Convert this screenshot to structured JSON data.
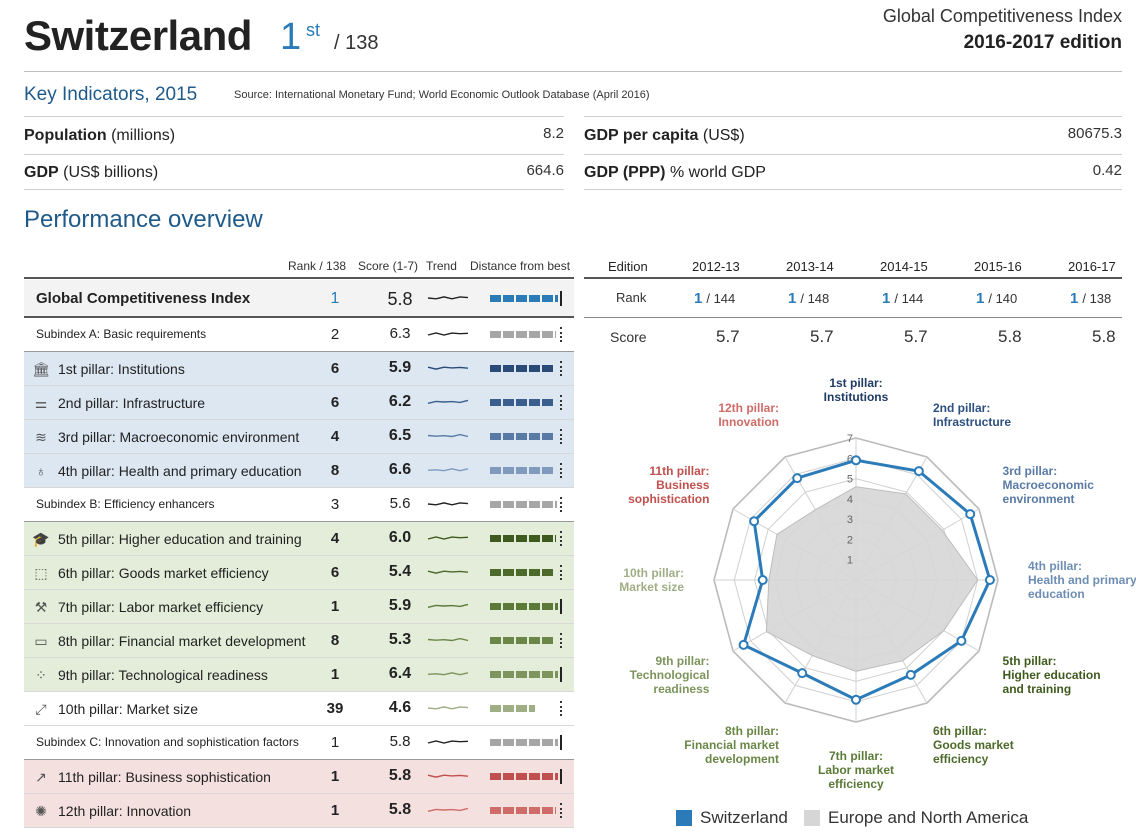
{
  "header": {
    "country": "Switzerland",
    "rank": "1",
    "rank_suffix": "st",
    "rank_of": "/ 138",
    "report_title": "Global Competitiveness Index",
    "edition": "2016-2017 edition"
  },
  "key_indicators": {
    "title": "Key Indicators, 2015",
    "source": "Source: International Monetary Fund; World Economic Outlook Database (April 2016)",
    "items": [
      {
        "bold": "Population",
        "rest": " (millions)",
        "value": "8.2"
      },
      {
        "bold": "GDP",
        "rest": " (US$ billions)",
        "value": "664.6"
      },
      {
        "bold": "GDP per capita",
        "rest": " (US$)",
        "value": "80675.3"
      },
      {
        "bold": "GDP (PPP)",
        "rest": " % world GDP",
        "value": "0.42"
      }
    ]
  },
  "performance": {
    "title": "Performance overview",
    "col_rank": "Rank / 138",
    "col_score": "Score (1-7)",
    "col_trend": "Trend",
    "col_distance": "Distance from best"
  },
  "table_rows": [
    {
      "label": "Global Competitiveness Index",
      "rank": "1",
      "score": "5.8",
      "kind": "main",
      "icon": "",
      "icon_name": "",
      "color": "#2b7bb9",
      "dist": 1.0
    },
    {
      "label": "Subindex A: Basic requirements",
      "rank": "2",
      "score": "6.3",
      "kind": "sub",
      "icon": "",
      "icon_name": "",
      "color": "#a6a6a6",
      "dist": 0.97
    },
    {
      "label": "1st pillar: Institutions",
      "rank": "6",
      "score": "5.9",
      "kind": "blue",
      "icon": "🏛",
      "icon_name": "institutions-icon",
      "color": "#2a4a78",
      "dist": 0.95
    },
    {
      "label": "2nd pillar: Infrastructure",
      "rank": "6",
      "score": "6.2",
      "kind": "blue",
      "icon": "⚌",
      "icon_name": "infrastructure-icon",
      "color": "#3a5f8f",
      "dist": 0.95
    },
    {
      "label": "3rd pillar: Macroeconomic environment",
      "rank": "4",
      "score": "6.5",
      "kind": "blue",
      "icon": "≋",
      "icon_name": "macroeconomic-icon",
      "color": "#5a7aa6",
      "dist": 0.96
    },
    {
      "label": "4th pillar: Health and primary education",
      "rank": "8",
      "score": "6.6",
      "kind": "blue",
      "icon": "♁",
      "icon_name": "health-icon",
      "color": "#7f9abd",
      "dist": 0.95
    },
    {
      "label": "Subindex B: Efficiency enhancers",
      "rank": "3",
      "score": "5.6",
      "kind": "sub",
      "icon": "",
      "icon_name": "",
      "color": "#a6a6a6",
      "dist": 0.98
    },
    {
      "label": "5th pillar: Higher education and training",
      "rank": "4",
      "score": "6.0",
      "kind": "green",
      "icon": "🎓",
      "icon_name": "graduation-cap-icon",
      "color": "#3f5a1e",
      "dist": 0.97
    },
    {
      "label": "6th pillar: Goods market efficiency",
      "rank": "6",
      "score": "5.4",
      "kind": "green",
      "icon": "⬚",
      "icon_name": "goods-box-icon",
      "color": "#4d6a2a",
      "dist": 0.95
    },
    {
      "label": "7th pillar: Labor market efficiency",
      "rank": "1",
      "score": "5.9",
      "kind": "green",
      "icon": "⚒",
      "icon_name": "labor-tools-icon",
      "color": "#5b7a38",
      "dist": 1.0
    },
    {
      "label": "8th pillar: Financial market development",
      "rank": "8",
      "score": "5.3",
      "kind": "green",
      "icon": "▭",
      "icon_name": "finance-icon",
      "color": "#6b8747",
      "dist": 0.94
    },
    {
      "label": "9th pillar: Technological readiness",
      "rank": "1",
      "score": "6.4",
      "kind": "green",
      "icon": "⁘",
      "icon_name": "technology-icon",
      "color": "#7d945c",
      "dist": 1.0
    },
    {
      "label": "10th pillar: Market size",
      "rank": "39",
      "score": "4.6",
      "kind": "white",
      "icon": "⤢",
      "icon_name": "market-size-icon",
      "color": "#9fae85",
      "dist": 0.66
    },
    {
      "label": "Subindex C: Innovation and sophistication factors",
      "rank": "1",
      "score": "5.8",
      "kind": "sub",
      "icon": "",
      "icon_name": "",
      "color": "#a6a6a6",
      "dist": 1.0
    },
    {
      "label": "11th pillar: Business sophistication",
      "rank": "1",
      "score": "5.8",
      "kind": "red",
      "icon": "↗",
      "icon_name": "business-chart-icon",
      "color": "#c0504d",
      "dist": 1.0
    },
    {
      "label": "12th pillar: Innovation",
      "rank": "1",
      "score": "5.8",
      "kind": "red",
      "icon": "✺",
      "icon_name": "innovation-icon",
      "color": "#cf6b68",
      "dist": 0.97
    }
  ],
  "edition_table": {
    "edition_label": "Edition",
    "rank_label": "Rank",
    "score_label": "Score",
    "editions": [
      "2012-13",
      "2013-14",
      "2014-15",
      "2015-16",
      "2016-17"
    ],
    "ranks": [
      "1",
      "1",
      "1",
      "1",
      "1"
    ],
    "rank_totals": [
      "/ 144",
      "/ 148",
      "/ 144",
      "/ 140",
      "/ 138"
    ],
    "scores": [
      "5.7",
      "5.7",
      "5.7",
      "5.8",
      "5.8"
    ]
  },
  "chart_data": {
    "type": "radar",
    "axis": [
      "1st pillar: Institutions",
      "2nd pillar: Infrastructure",
      "3rd pillar: Macroeconomic environment",
      "4th pillar: Health and primary education",
      "5th pillar: Higher education and training",
      "6th pillar: Goods market efficiency",
      "7th pillar: Labor market efficiency",
      "8th pillar: Financial market development",
      "9th pillar: Technological readiness",
      "10th pillar: Market size",
      "11th pillar: Business sophistication",
      "12th pillar: Innovation"
    ],
    "ticks": [
      "1",
      "2",
      "3",
      "4",
      "5",
      "6",
      "7"
    ],
    "rmin": 1,
    "rmax": 7,
    "series": [
      {
        "name": "Switzerland",
        "color": "#2b7bb9",
        "values": [
          5.9,
          6.2,
          6.5,
          6.6,
          6.0,
          5.4,
          5.9,
          5.3,
          6.4,
          4.6,
          5.8,
          5.8
        ]
      },
      {
        "name": "Europe and North America",
        "color": "#d6d6d6",
        "values": [
          4.6,
          4.9,
          4.9,
          6.0,
          5.0,
          4.6,
          4.5,
          4.3,
          5.1,
          4.3,
          4.5,
          4.0
        ]
      }
    ],
    "axis_label_lines": [
      [
        "1st pillar:",
        "Institutions"
      ],
      [
        "2nd pillar:",
        "Infrastructure"
      ],
      [
        "3rd pillar:",
        "Macroeconomic",
        "environment"
      ],
      [
        "4th pillar:",
        "Health and primary",
        "education"
      ],
      [
        "5th pillar:",
        "Higher education",
        "and training"
      ],
      [
        "6th pillar:",
        "Goods market",
        "efficiency"
      ],
      [
        "7th pillar:",
        "Labor market",
        "efficiency"
      ],
      [
        "8th pillar:",
        "Financial market",
        "development"
      ],
      [
        "9th pillar:",
        "Technological",
        "readiness"
      ],
      [
        "10th pillar:",
        "Market size"
      ],
      [
        "11th pillar:",
        "Business",
        "sophistication"
      ],
      [
        "12th pillar:",
        "Innovation"
      ]
    ],
    "axis_label_colors": [
      "#1f3a63",
      "#2d5080",
      "#5a7aa6",
      "#6d8db4",
      "#3f5a1e",
      "#4d6a2a",
      "#5b7a38",
      "#6b8747",
      "#7d945c",
      "#9fae85",
      "#c0504d",
      "#cf6b68"
    ]
  }
}
